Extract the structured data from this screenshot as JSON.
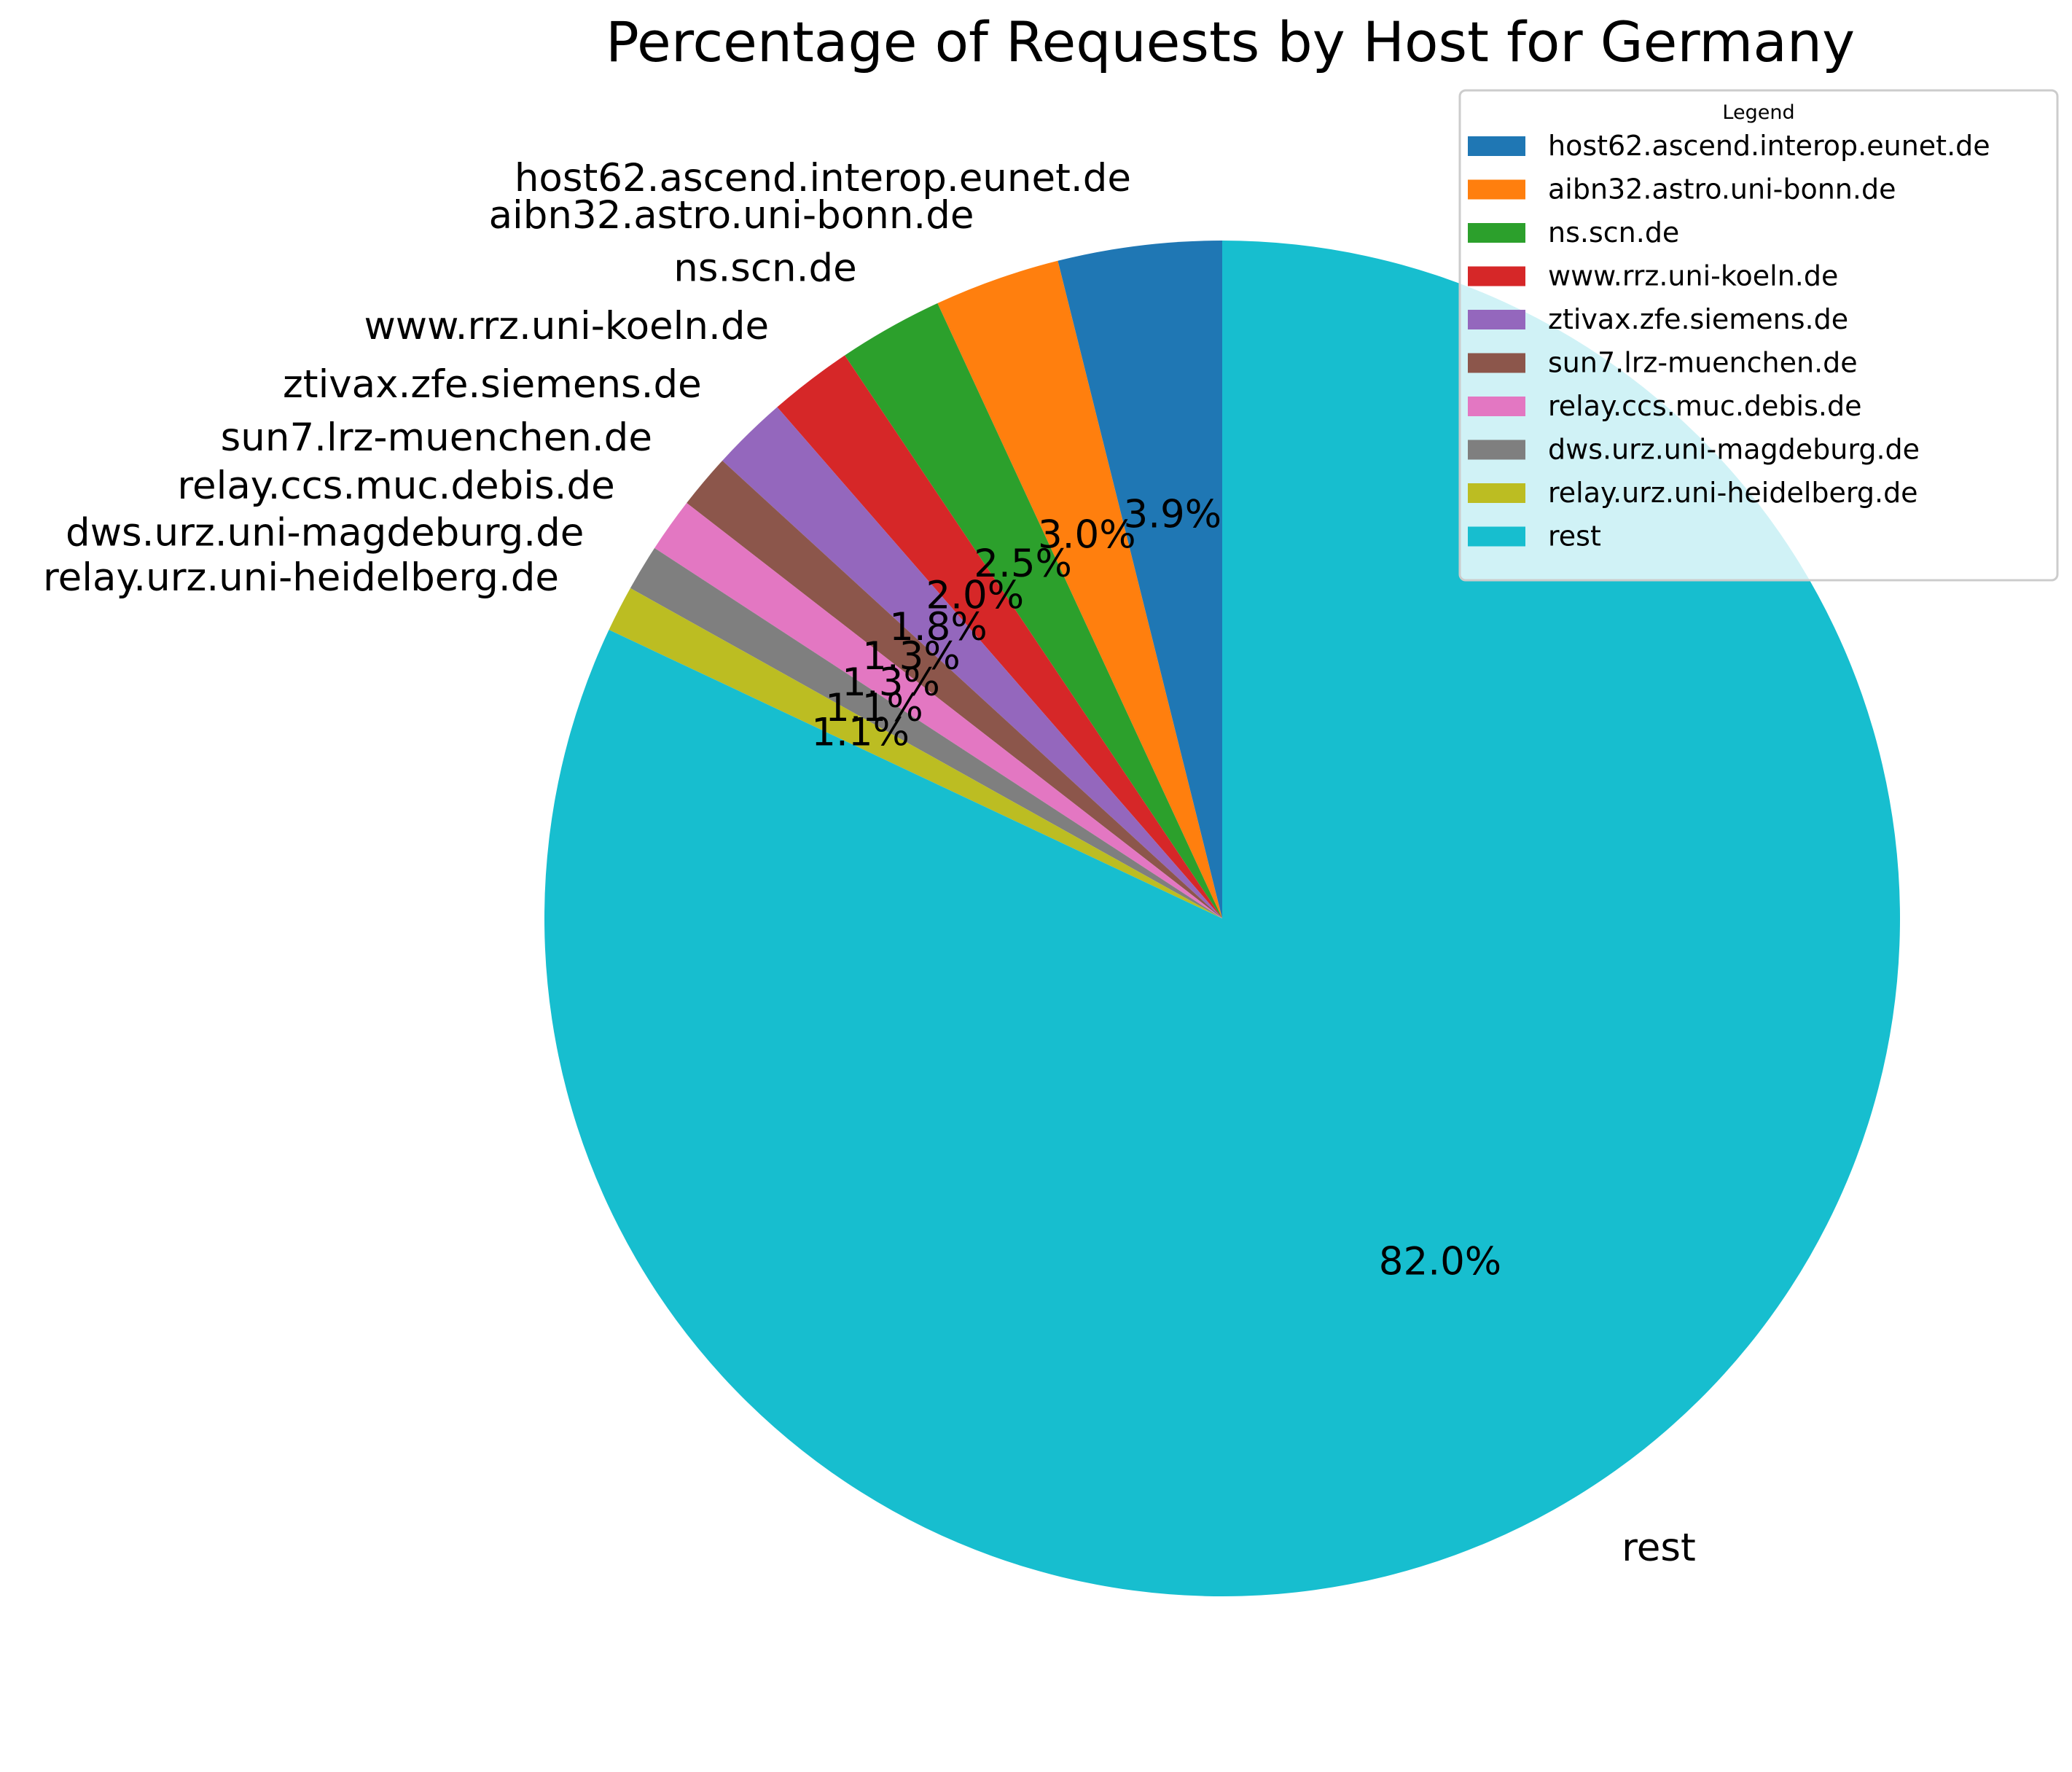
{
  "chart_data": {
    "type": "pie",
    "title": "Percentage of Requests by Host for Germany",
    "categories": [
      "host62.ascend.interop.eunet.de",
      "aibn32.astro.uni-bonn.de",
      "ns.scn.de",
      "www.rrz.uni-koeln.de",
      "ztivax.zfe.siemens.de",
      "sun7.lrz-muenchen.de",
      "relay.ccs.muc.debis.de",
      "dws.urz.uni-magdeburg.de",
      "relay.urz.uni-heidelberg.de",
      "rest"
    ],
    "values": [
      3.9,
      3.0,
      2.5,
      2.0,
      1.8,
      1.3,
      1.3,
      1.1,
      1.1,
      82.0
    ],
    "percent_labels": [
      "3.9%",
      "3.0%",
      "2.5%",
      "2.0%",
      "1.8%",
      "1.3%",
      "1.3%",
      "1.1%",
      "1.1%",
      "82.0%"
    ],
    "colors": [
      "#1f77b4",
      "#ff7f0e",
      "#2ca02c",
      "#d62728",
      "#9467bd",
      "#8c564b",
      "#e377c2",
      "#7f7f7f",
      "#bcbd22",
      "#17becf"
    ],
    "start_angle_deg": 90,
    "direction": "counterclockwise",
    "legend": {
      "title": "Legend",
      "placement": "upper-right"
    }
  }
}
